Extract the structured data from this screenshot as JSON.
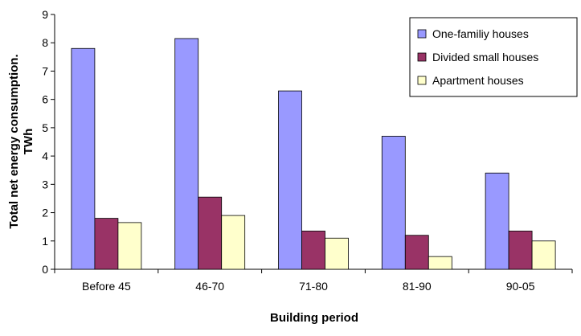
{
  "chart_data": {
    "type": "bar",
    "title": "",
    "xlabel": "Building period",
    "ylabel_line1": "Total net energy consumption.",
    "ylabel_line2": "TWh",
    "ylim": [
      0,
      9
    ],
    "yticks": [
      0,
      1,
      2,
      3,
      4,
      5,
      6,
      7,
      8,
      9
    ],
    "grid": false,
    "legend_position": "top-right",
    "categories": [
      "Before 45",
      "46-70",
      "71-80",
      "81-90",
      "90-05"
    ],
    "series": [
      {
        "name": "One-familiy houses",
        "color": "#9999ff",
        "values": [
          7.8,
          8.15,
          6.3,
          4.7,
          3.4
        ]
      },
      {
        "name": "Divided small houses",
        "color": "#993366",
        "values": [
          1.8,
          2.55,
          1.35,
          1.2,
          1.35
        ]
      },
      {
        "name": "Apartment houses",
        "color": "#ffffcc",
        "values": [
          1.65,
          1.9,
          1.1,
          0.45,
          1.0
        ]
      }
    ]
  }
}
